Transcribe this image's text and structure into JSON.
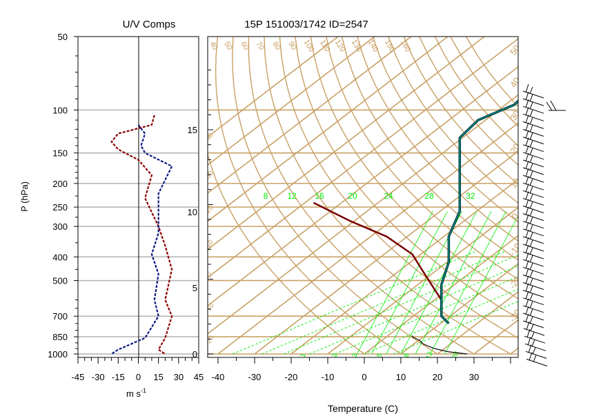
{
  "titles": {
    "left": "U/V Comps",
    "right": "15P 151003/1742 ID=2547"
  },
  "axes": {
    "pressure_label": "P (hPa)",
    "pressure_ticks": [
      50,
      100,
      150,
      200,
      250,
      300,
      400,
      500,
      700,
      850,
      1000
    ],
    "wind_unit": "m s",
    "wind_unit_exp": "-1",
    "wind_ticks": [
      "-45",
      "-30",
      "-15",
      "0",
      "15",
      "30",
      "45"
    ],
    "temperature_label": "Temperature (C)",
    "temperature_ticks": [
      "-40",
      "-30",
      "-20",
      "-10",
      "0",
      "10",
      "20",
      "30"
    ],
    "height_km_ticks": [
      "0",
      "5",
      "10",
      "15"
    ]
  },
  "colors": {
    "u_component": "#8b0000",
    "v_component": "#0a1a80",
    "isotherm_adiabat": "#c8a064",
    "mixing_ratio": "#00ee00",
    "parcel": "#7a0000",
    "parcel_env": "#008b8b",
    "temperature": "#000000",
    "wind_barbs": "#000000"
  },
  "labels": {
    "dry_adiabats": [
      "40",
      "50",
      "60",
      "70",
      "80",
      "90",
      "100",
      "110",
      "120",
      "130",
      "140",
      "150",
      "160"
    ],
    "mixing_ratios_top": [
      "8",
      "12",
      "16",
      "20",
      "24",
      "28",
      "32"
    ],
    "mixing_ratios_bottom": [
      "1",
      "2",
      "3",
      "5",
      "8",
      "12",
      "20"
    ],
    "moist_adiabats_right": [
      "50",
      "40",
      "30",
      "20",
      "10",
      "0",
      "-10",
      "-20",
      "-30"
    ],
    "moist_adiabats_left": [
      "40",
      "30",
      "20",
      "10",
      "0",
      "-10",
      "-20",
      "-30"
    ]
  },
  "chart_data": [
    {
      "type": "line",
      "title": "U/V Comps",
      "xlabel": "m s-1",
      "ylabel": "P (hPa)",
      "xlim": [
        -45,
        45
      ],
      "ylim": [
        1000,
        50
      ],
      "y_scale": "log",
      "grid": true,
      "series": [
        {
          "name": "U",
          "points": [
            [
              12,
              105
            ],
            [
              10,
              115
            ],
            [
              -15,
              125
            ],
            [
              -20,
              135
            ],
            [
              -15,
              145
            ],
            [
              0,
              160
            ],
            [
              10,
              185
            ],
            [
              5,
              230
            ],
            [
              15,
              300
            ],
            [
              20,
              360
            ],
            [
              25,
              450
            ],
            [
              20,
              600
            ],
            [
              25,
              700
            ],
            [
              20,
              860
            ],
            [
              15,
              960
            ],
            [
              20,
              1000
            ]
          ]
        },
        {
          "name": "V",
          "points": [
            [
              0,
              115
            ],
            [
              5,
              125
            ],
            [
              2,
              140
            ],
            [
              5,
              150
            ],
            [
              25,
              170
            ],
            [
              15,
              220
            ],
            [
              15,
              270
            ],
            [
              15,
              320
            ],
            [
              10,
              390
            ],
            [
              15,
              470
            ],
            [
              12,
              600
            ],
            [
              15,
              700
            ],
            [
              5,
              860
            ],
            [
              -15,
              960
            ],
            [
              -20,
              1000
            ]
          ]
        }
      ]
    },
    {
      "type": "line",
      "title": "15P 151003/1742 ID=2547",
      "xlabel": "Temperature (C)",
      "ylabel": "P (hPa)",
      "xlim": [
        -44,
        41
      ],
      "ylim": [
        1000,
        50
      ],
      "y_scale": "log",
      "grid": true,
      "series": [
        {
          "name": "Parcel",
          "points": [
            [
              -15,
              240
            ],
            [
              -5,
              285
            ],
            [
              5,
              330
            ],
            [
              12,
              390
            ],
            [
              15,
              460
            ],
            [
              18,
              540
            ],
            [
              20,
              600
            ]
          ]
        },
        {
          "name": "Env",
          "points": [
            [
              45,
              80
            ],
            [
              40,
              95
            ],
            [
              30,
              110
            ],
            [
              25,
              130
            ],
            [
              25,
              150
            ],
            [
              25,
              175
            ],
            [
              25,
              220
            ],
            [
              25,
              260
            ],
            [
              22,
              330
            ],
            [
              22,
              420
            ],
            [
              20,
              520
            ],
            [
              20,
              600
            ],
            [
              20,
              700
            ],
            [
              22,
              750
            ]
          ]
        },
        {
          "name": "Temperature",
          "points": [
            [
              12,
              840
            ],
            [
              12,
              850
            ],
            [
              14,
              880
            ],
            [
              15,
              910
            ],
            [
              18,
              950
            ],
            [
              22,
              980
            ],
            [
              27,
              1000
            ]
          ]
        }
      ]
    }
  ]
}
